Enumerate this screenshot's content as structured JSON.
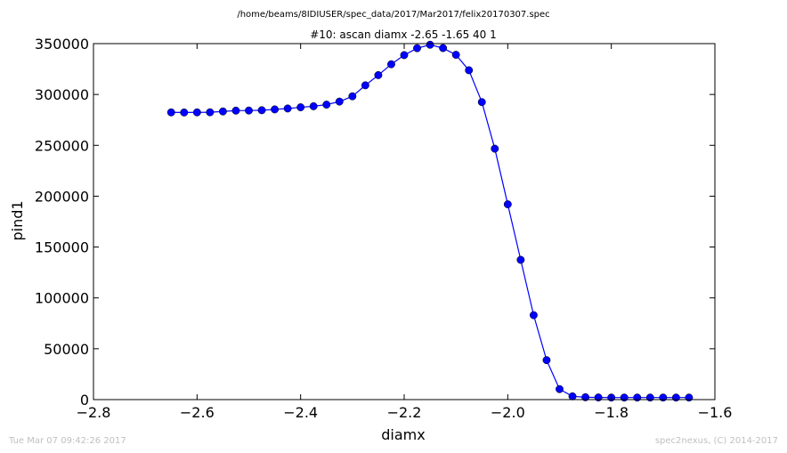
{
  "footer": {
    "timestamp": "Tue Mar 07 09:42:26 2017",
    "credit": "spec2nexus, (C) 2014-2017"
  },
  "chart_data": {
    "type": "line",
    "title": "/home/beams/8IDIUSER/spec_data/2017/Mar2017/felix20170307.spec",
    "subtitle": "#10: ascan  diamx -2.65 -1.65  40 1",
    "xlabel": "diamx",
    "ylabel": "pind1",
    "xlim": [
      -2.8,
      -1.6
    ],
    "ylim": [
      0,
      350000
    ],
    "xticks": [
      "−2.8",
      "−2.6",
      "−2.4",
      "−2.2",
      "−2.0",
      "−1.8",
      "−1.6"
    ],
    "xtick_values": [
      -2.8,
      -2.6,
      -2.4,
      -2.2,
      -2.0,
      -1.8,
      -1.6
    ],
    "yticks": [
      "0",
      "50000",
      "100000",
      "150000",
      "200000",
      "250000",
      "300000",
      "350000"
    ],
    "ytick_values": [
      0,
      50000,
      100000,
      150000,
      200000,
      250000,
      300000,
      350000
    ],
    "grid": false,
    "series_color": "#0000ff",
    "marker": "circle",
    "x": [
      -2.65,
      -2.625,
      -2.6,
      -2.575,
      -2.55,
      -2.525,
      -2.5,
      -2.475,
      -2.45,
      -2.425,
      -2.4,
      -2.375,
      -2.35,
      -2.325,
      -2.3,
      -2.275,
      -2.25,
      -2.225,
      -2.2,
      -2.175,
      -2.15,
      -2.125,
      -2.1,
      -2.075,
      -2.05,
      -2.025,
      -2.0,
      -1.975,
      -1.95,
      -1.925,
      -1.9,
      -1.875,
      -1.85,
      -1.825,
      -1.8,
      -1.775,
      -1.75,
      -1.725,
      -1.7,
      -1.675,
      -1.65
    ],
    "y": [
      282400,
      282300,
      282400,
      282500,
      283300,
      284100,
      284200,
      284500,
      285300,
      286200,
      287400,
      288400,
      290000,
      293000,
      298200,
      309000,
      319000,
      329700,
      338700,
      345500,
      348900,
      345600,
      339000,
      323800,
      292500,
      246700,
      192000,
      137400,
      83000,
      38800,
      10300,
      3200,
      2300,
      2100,
      2000,
      2000,
      2000,
      2000,
      2000,
      2000,
      2000
    ]
  }
}
